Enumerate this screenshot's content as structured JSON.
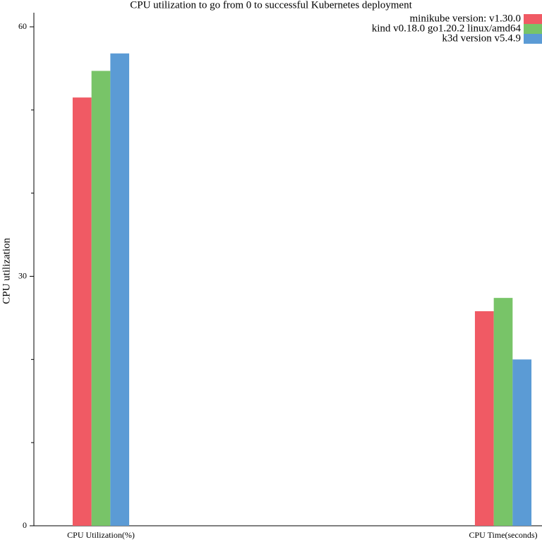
{
  "chart_data": {
    "type": "bar",
    "title": "CPU utilization to go from 0 to successful Kubernetes deployment",
    "y_label": "CPU utilization",
    "categories": [
      "CPU Utilization(%)",
      "CPU Time(seconds)"
    ],
    "series": [
      {
        "name": "minikube version: v1.30.0",
        "color": "#f05a64",
        "values": [
          51.5,
          25.8
        ]
      },
      {
        "name": "kind v0.18.0 go1.20.2 linux/amd64",
        "color": "#78c468",
        "values": [
          54.7,
          27.4
        ]
      },
      {
        "name": "k3d version v5.4.9",
        "color": "#5b9bd5",
        "values": [
          56.8,
          20.0
        ]
      }
    ],
    "ylim": [
      0,
      60
    ],
    "yticks": [
      0,
      30,
      60
    ],
    "minor_yticks": [
      10,
      20,
      40,
      50
    ],
    "legend": "top-right"
  }
}
